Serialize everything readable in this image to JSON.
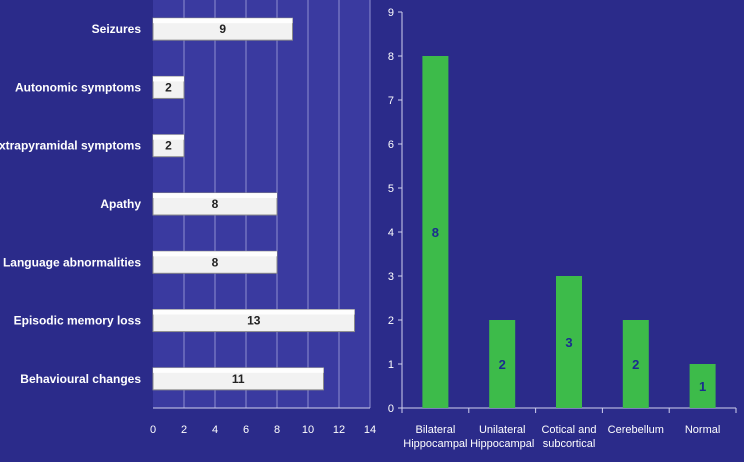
{
  "chart_data": [
    {
      "type": "bar",
      "orientation": "horizontal",
      "categories": [
        "Seizures",
        "Autonomic symptoms",
        "Extrapyramidal symptoms",
        "Apathy",
        "Language abnormalities",
        "Episodic memory loss",
        "Behavioural changes"
      ],
      "values": [
        9,
        2,
        2,
        8,
        8,
        13,
        11
      ],
      "xlim": [
        0,
        14
      ],
      "xticks": [
        0,
        2,
        4,
        6,
        8,
        10,
        12,
        14
      ],
      "grid": true,
      "bar_color": "#f2f2f2",
      "plot_bg": "#3a3aa0"
    },
    {
      "type": "bar",
      "orientation": "vertical",
      "categories": [
        [
          "Bilateral",
          "Hippocampal"
        ],
        [
          "Unilateral",
          "Hippocampal"
        ],
        [
          "Cotical and",
          "subcortical"
        ],
        [
          "Cerebellum"
        ],
        [
          "Normal"
        ]
      ],
      "values": [
        8,
        2,
        3,
        2,
        1
      ],
      "ylim": [
        0,
        9
      ],
      "yticks": [
        0,
        1,
        2,
        3,
        4,
        5,
        6,
        7,
        8,
        9
      ],
      "grid": false,
      "bar_color": "#3dbb4a"
    }
  ]
}
